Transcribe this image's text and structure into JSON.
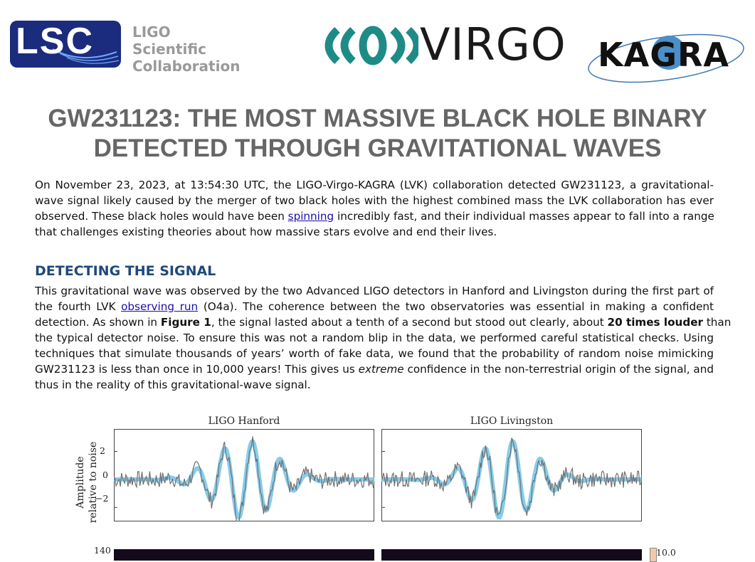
{
  "header": {
    "lsc_logo": "LSC",
    "lsc_org": [
      "LIGO",
      "Scientific",
      "Collaboration"
    ],
    "virgo_logo": "VIRGO",
    "kagra_logo": "KAGRA"
  },
  "title": [
    "GW231123: THE MOST MASSIVE BLACK HOLE BINARY",
    "DETECTED THROUGH GRAVITATIONAL WAVES"
  ],
  "intro": {
    "lines": [
      "On November 23, 2023, at 13:54:30 UTC, the LIGO-Virgo-KAGRA (LVK) collaboration detected GW231123, a gravitational-",
      "wave signal likely caused by the merger of two black holes with the highest combined mass the LVK collaboration has ever"
    ],
    "line3_before": "observed. These black holes would have been ",
    "line3_link": "spinning",
    "line3_after": " incredibly fast, and their individual masses appear to fall into a range",
    "line4": "that challenges existing theories about how massive stars evolve and end their lives."
  },
  "section1": {
    "heading": "DETECTING THE SIGNAL",
    "line1": "This gravitational wave was observed by the two Advanced LIGO detectors in Hanford and Livingston during the first part of",
    "line2_before": "the fourth LVK ",
    "line2_link": "observing run",
    "line2_after": " (O4a). The coherence between the two observatories was essential in making a confident",
    "line3_before": "detection. As shown in ",
    "line3_bold": "Figure 1",
    "line3_mid": ", the signal lasted about a tenth of a second but stood out clearly, about ",
    "line3_bold2": "20 times louder",
    "line3_after": " than",
    "line4": "the typical detector noise. To ensure this was not a random blip in the data, we performed careful statistical checks. Using",
    "line5": "techniques that simulate thousands of years’ worth of fake data, we found that the probability of random noise mimicking",
    "line6_before": "GW231123 is less than once in 10,000 years! This gives us ",
    "line6_em": "extreme",
    "line6_after": " confidence in the non-terrestrial origin of the signal, and",
    "line7": "thus in the reality of this gravitational-wave signal."
  },
  "figure": {
    "panels": [
      {
        "title": "LIGO Hanford"
      },
      {
        "title": "LIGO Livingston"
      }
    ],
    "ylabel": [
      "Amplitude",
      "relative to noise"
    ],
    "y_ticks": [
      "2",
      "0",
      "−2"
    ],
    "ylim": [
      -3,
      3.6
    ],
    "lower_tick": "140",
    "colorbar_label": "10.0",
    "colors": {
      "data": "#707070",
      "model": "#73c3e6",
      "spectrogram": "#140a1c",
      "colorbar": "#f3c9a6"
    }
  }
}
